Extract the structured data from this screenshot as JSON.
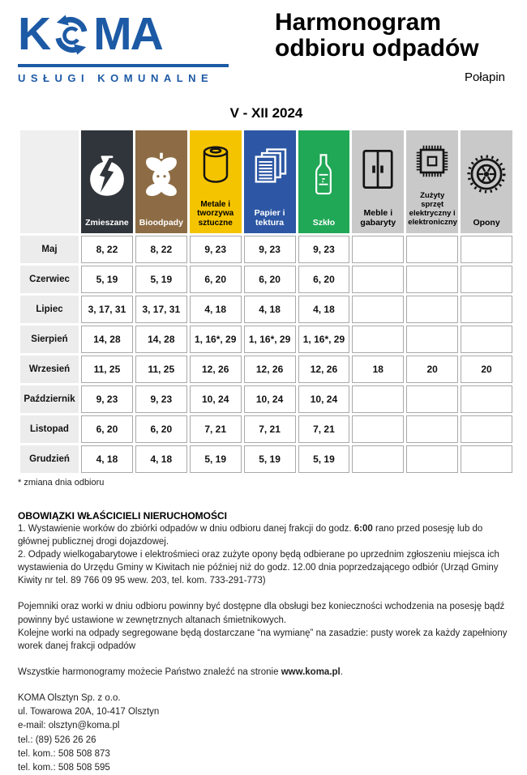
{
  "logo": {
    "text_k": "K",
    "text_ma": "MA",
    "recycle_icon": "recycle-arrows-icon",
    "tagline": "USŁUGI KOMUNALNE"
  },
  "header": {
    "title_line1": "Harmonogram",
    "title_line2": "odbioru odpadów",
    "location": "Połapin",
    "period": "V - XII 2024"
  },
  "colors": {
    "brand_blue": "#1d5aa5",
    "mixed_dark": "#2f353a",
    "bio_brown": "#8d6c45",
    "metal_yellow": "#f5c400",
    "paper_blue": "#2d57a4",
    "glass_green": "#21a857",
    "bulky_gray": "#c9c9c9",
    "month_bg": "#ececec",
    "cell_border": "#a9a9a9"
  },
  "table": {
    "columns": [
      {
        "label": "Zmieszane",
        "icon": "mixed-waste-pot-icon",
        "bg": "#2f353a",
        "text": "#ffffff"
      },
      {
        "label": "Bioodpady",
        "icon": "apple-core-icon",
        "bg": "#8d6c45",
        "text": "#ffffff"
      },
      {
        "label": "Metale i tworzywa sztuczne",
        "icon": "can-icon",
        "bg": "#f5c400",
        "text": "#000000"
      },
      {
        "label": "Papier i tektura",
        "icon": "paper-stack-icon",
        "bg": "#2d57a4",
        "text": "#ffffff"
      },
      {
        "label": "Szkło",
        "icon": "glass-bottle-icon",
        "bg": "#21a857",
        "text": "#ffffff"
      },
      {
        "label": "Meble i gabaryty",
        "icon": "wardrobe-icon",
        "bg": "#c9c9c9",
        "text": "#000000"
      },
      {
        "label": "Zużyty sprzęt elektryczny i elektroniczny",
        "icon": "electronics-chip-icon",
        "bg": "#c9c9c9",
        "text": "#000000"
      },
      {
        "label": "Opony",
        "icon": "tire-icon",
        "bg": "#c9c9c9",
        "text": "#000000"
      }
    ],
    "rows": [
      {
        "month": "Maj",
        "values": [
          "8, 22",
          "8, 22",
          "9, 23",
          "9, 23",
          "9, 23",
          "",
          "",
          ""
        ]
      },
      {
        "month": "Czerwiec",
        "values": [
          "5, 19",
          "5, 19",
          "6, 20",
          "6, 20",
          "6, 20",
          "",
          "",
          ""
        ]
      },
      {
        "month": "Lipiec",
        "values": [
          "3, 17, 31",
          "3, 17, 31",
          "4, 18",
          "4, 18",
          "4, 18",
          "",
          "",
          ""
        ]
      },
      {
        "month": "Sierpień",
        "values": [
          "14, 28",
          "14, 28",
          "1, 16*, 29",
          "1, 16*, 29",
          "1, 16*, 29",
          "",
          "",
          ""
        ]
      },
      {
        "month": "Wrzesień",
        "values": [
          "11, 25",
          "11, 25",
          "12, 26",
          "12, 26",
          "12, 26",
          "18",
          "20",
          "20"
        ]
      },
      {
        "month": "Październik",
        "values": [
          "9, 23",
          "9, 23",
          "10, 24",
          "10, 24",
          "10, 24",
          "",
          "",
          ""
        ]
      },
      {
        "month": "Listopad",
        "values": [
          "6, 20",
          "6, 20",
          "7, 21",
          "7, 21",
          "7, 21",
          "",
          "",
          ""
        ]
      },
      {
        "month": "Grudzień",
        "values": [
          "4, 18",
          "4, 18",
          "5, 19",
          "5, 19",
          "5, 19",
          "",
          "",
          ""
        ]
      }
    ]
  },
  "notes": {
    "asterisk": "* zmiana dnia odbioru",
    "obligations_title": "OBOWIĄZKI WŁAŚCICIELI NIERUCHOMOŚCI",
    "item1_pre": "1. Wystawienie worków do zbiórki odpadów w dniu odbioru danej frakcji do godz. ",
    "item1_bold": "6:00",
    "item1_post": " rano przed posesję lub do głównej publicznej drogi dojazdowej.",
    "item2": "2. Odpady wielkogabarytowe i elektrośmieci oraz zużyte opony będą odbierane po uprzednim zgłoszeniu miejsca ich wystawienia do Urzędu Gminy w Kiwitach nie później niż do godz. 12.00 dnia poprzedzającego odbiór (Urząd Gminy Kiwity nr tel. 89 766 09 95 wew. 203, tel. kom. 733-291-773)",
    "containers": "Pojemniki oraz worki w dniu odbioru powinny być dostępne dla obsługi bez konieczności wchodzenia na posesję bądź powinny być ustawione w zewnętrznych altanach śmietnikowych.",
    "bags": "Kolejne worki na odpady segregowane będą dostarczane “na wymianę” na zasadzie: pusty worek za każdy zapełniony worek danej frakcji odpadów",
    "website_pre": "Wszystkie harmonogramy możecie Państwo znaleźć na stronie ",
    "website_bold": "www.koma.pl",
    "website_post": "."
  },
  "contact": {
    "company": "KOMA Olsztyn Sp. z o.o.",
    "address": "ul. Towarowa 20A, 10-417 Olsztyn",
    "email": "e-mail: olsztyn@koma.pl",
    "phone": "tel.: (89) 526 26 26",
    "mobile1": "tel. kom.: 508 508 873",
    "mobile2": "tel. kom.: 508 508 595"
  }
}
